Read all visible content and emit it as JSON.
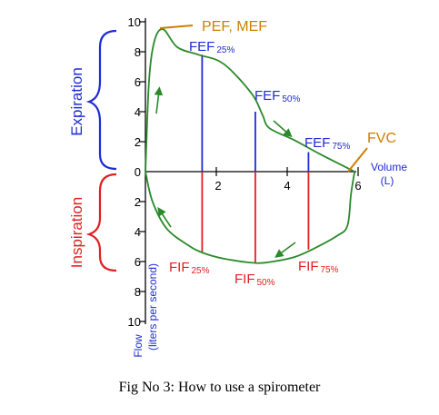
{
  "figure": {
    "caption": "Fig No 3: How to use a spirometer",
    "colors": {
      "curve": "#2a8a2a",
      "expiration": "#1f2bd6",
      "inspiration": "#e02020",
      "highlight": "#cc8000",
      "axis": "#000000"
    },
    "side_labels": {
      "expiration": "Expiration",
      "inspiration": "Inspiration"
    },
    "y_axis": {
      "label_line1": "Flow",
      "label_line2": "(liters per second)",
      "ticks_up": [
        "10",
        "8",
        "6",
        "4",
        "2",
        "0"
      ],
      "ticks_down": [
        "2",
        "4",
        "6",
        "8",
        "10"
      ]
    },
    "x_axis": {
      "label_line1": "Volume",
      "label_line2": "(L)",
      "ticks": [
        "2",
        "4",
        "6"
      ]
    },
    "annotations": {
      "pef_mef": "PEF, MEF",
      "fvc": "FVC",
      "fef25": {
        "main": "FEF",
        "sub": "25%"
      },
      "fef50": {
        "main": "FEF",
        "sub": "50%"
      },
      "fef75": {
        "main": "FEF",
        "sub": "75%"
      },
      "fif25": {
        "main": "FIF",
        "sub": "25%"
      },
      "fif50": {
        "main": "FIF",
        "sub": "50%"
      },
      "fif75": {
        "main": "FIF",
        "sub": "75%"
      }
    },
    "expiratory_points": [
      [
        0,
        0
      ],
      [
        0.1,
        6
      ],
      [
        0.25,
        8.7
      ],
      [
        0.5,
        9.5
      ],
      [
        0.9,
        8.3
      ],
      [
        1.5,
        7.8
      ],
      [
        2.2,
        7.2
      ],
      [
        3.0,
        5.2
      ],
      [
        3.3,
        3.8
      ],
      [
        3.5,
        2.9
      ],
      [
        4.2,
        2.1
      ],
      [
        4.9,
        1.2
      ],
      [
        5.9,
        0
      ]
    ],
    "inspiratory_points": [
      [
        0,
        0
      ],
      [
        0.2,
        -2
      ],
      [
        0.6,
        -3.8
      ],
      [
        1.2,
        -4.9
      ],
      [
        1.6,
        -5.4
      ],
      [
        2.2,
        -5.8
      ],
      [
        3.1,
        -6.1
      ],
      [
        3.6,
        -6.0
      ],
      [
        4.2,
        -5.7
      ],
      [
        4.7,
        -5.2
      ],
      [
        5.4,
        -4.3
      ],
      [
        5.7,
        -3.6
      ],
      [
        5.8,
        -1.5
      ],
      [
        5.9,
        0
      ]
    ],
    "percent_volumes": {
      "fef25": 1.6,
      "fef50": 3.1,
      "fef75": 4.6
    },
    "fef_flows": {
      "fef25": 7.8,
      "fef50": 4.0,
      "fef75": 1.3
    },
    "fif_flows": {
      "fif25": -5.4,
      "fif50": -6.1,
      "fif75": -5.2
    }
  }
}
